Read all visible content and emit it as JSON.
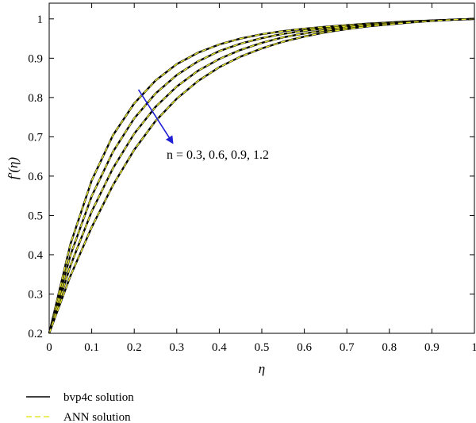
{
  "chart_data": {
    "type": "line",
    "xlabel": "η",
    "ylabel": "f′(η)",
    "xlim": [
      0,
      1
    ],
    "ylim": [
      0.2,
      1.04
    ],
    "xticks": [
      "0",
      "0.1",
      "0.2",
      "0.3",
      "0.4",
      "0.5",
      "0.6",
      "0.7",
      "0.8",
      "0.9",
      "1"
    ],
    "yticks": [
      "0.2",
      "0.3",
      "0.4",
      "0.5",
      "0.6",
      "0.7",
      "0.8",
      "0.9",
      "1"
    ],
    "grid": false,
    "x": [
      0,
      0.05,
      0.1,
      0.15,
      0.2,
      0.25,
      0.3,
      0.35,
      0.4,
      0.45,
      0.5,
      0.55,
      0.6,
      0.65,
      0.7,
      0.75,
      0.8,
      0.85,
      0.9,
      0.95,
      1
    ],
    "series": [
      {
        "values": [
          0.2,
          0.427,
          0.589,
          0.704,
          0.785,
          0.843,
          0.885,
          0.914,
          0.935,
          0.95,
          0.961,
          0.969,
          0.975,
          0.98,
          0.984,
          0.988,
          0.991,
          0.994,
          0.996,
          0.998,
          1.0
        ]
      },
      {
        "values": [
          0.2,
          0.399,
          0.549,
          0.662,
          0.747,
          0.81,
          0.857,
          0.892,
          0.918,
          0.937,
          0.951,
          0.962,
          0.97,
          0.976,
          0.981,
          0.986,
          0.99,
          0.993,
          0.996,
          0.998,
          1.0
        ]
      },
      {
        "values": [
          0.2,
          0.372,
          0.51,
          0.62,
          0.708,
          0.776,
          0.828,
          0.868,
          0.898,
          0.921,
          0.939,
          0.953,
          0.963,
          0.971,
          0.978,
          0.984,
          0.988,
          0.992,
          0.995,
          0.998,
          1.0
        ]
      },
      {
        "values": [
          0.2,
          0.346,
          0.47,
          0.577,
          0.667,
          0.74,
          0.797,
          0.842,
          0.877,
          0.904,
          0.925,
          0.942,
          0.955,
          0.966,
          0.974,
          0.981,
          0.986,
          0.991,
          0.995,
          0.998,
          1.0
        ]
      }
    ],
    "annotation": {
      "text": "n = 0.3, 0.6, 0.9, 1.2",
      "arrow_from": [
        0.21,
        0.82
      ],
      "arrow_to": [
        0.29,
        0.685
      ],
      "arrow_color": "#1f1fd6"
    },
    "legend": {
      "placement": "bottom-left",
      "entries": [
        {
          "label": "bvp4c solution",
          "color": "#000000",
          "style": "solid"
        },
        {
          "label": "ANN solution",
          "color": "#e6e62b",
          "style": "dashed"
        }
      ]
    }
  }
}
